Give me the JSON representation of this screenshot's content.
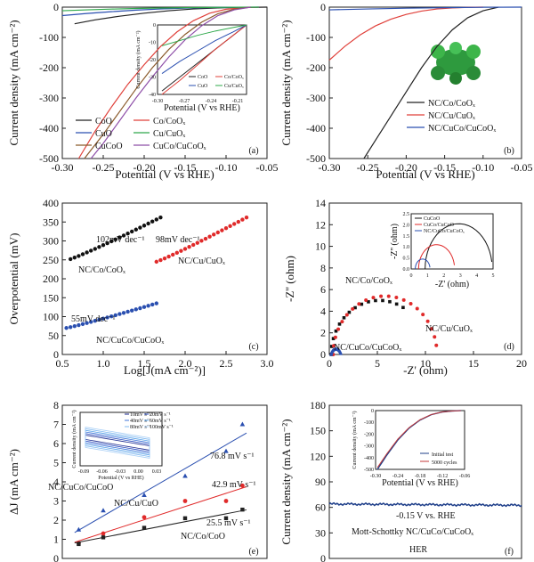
{
  "chart_data": [
    {
      "panel": "(a)",
      "type": "line",
      "xlabel": "Potential (V vs RHE)",
      "ylabel": "Current density (mA cm⁻²)",
      "xlim": [
        -0.3,
        -0.05
      ],
      "ylim": [
        -500,
        0
      ],
      "xticks": [
        "-0.30",
        "-0.25",
        "-0.20",
        "-0.15",
        "-0.10",
        "-0.05"
      ],
      "yticks": [
        "0",
        "-100",
        "-200",
        "-300",
        "-400",
        "-500"
      ],
      "series": [
        {
          "name": "CoO",
          "color": "#222222",
          "x": [
            -0.285,
            -0.26,
            -0.23,
            -0.2,
            -0.17,
            -0.14,
            -0.11,
            -0.08,
            -0.05
          ],
          "y": [
            -55,
            -42,
            -30,
            -20,
            -12,
            -6,
            -2.5,
            -1,
            0
          ]
        },
        {
          "name": "Co/CoOₓ",
          "color": "#e0403a",
          "x": [
            -0.28,
            -0.26,
            -0.24,
            -0.22,
            -0.2,
            -0.18,
            -0.16,
            -0.14,
            -0.12,
            -0.1,
            -0.08,
            -0.06
          ],
          "y": [
            -500,
            -410,
            -330,
            -255,
            -190,
            -130,
            -82,
            -45,
            -20,
            -7,
            -2,
            0
          ]
        },
        {
          "name": "CuO",
          "color": "#2a4fb0",
          "x": [
            -0.3,
            -0.27,
            -0.24,
            -0.21,
            -0.18,
            -0.15,
            -0.12,
            -0.09,
            -0.06
          ],
          "y": [
            -28,
            -21,
            -15,
            -10,
            -6,
            -3.5,
            -1.5,
            -0.5,
            0
          ]
        },
        {
          "name": "Cu/CuOₓ",
          "color": "#2ea84a",
          "x": [
            -0.3,
            -0.27,
            -0.24,
            -0.21,
            -0.18,
            -0.15,
            -0.12,
            -0.09,
            -0.06
          ],
          "y": [
            -12,
            -9,
            -6.5,
            -4.5,
            -3,
            -1.8,
            -1,
            -0.4,
            0
          ]
        },
        {
          "name": "CuCoO",
          "color": "#8a5a2b",
          "x": [
            -0.273,
            -0.25,
            -0.23,
            -0.21,
            -0.19,
            -0.17,
            -0.15,
            -0.13,
            -0.11,
            -0.09,
            -0.07
          ],
          "y": [
            -500,
            -420,
            -345,
            -270,
            -200,
            -140,
            -90,
            -50,
            -22,
            -7,
            0
          ]
        },
        {
          "name": "CuCo/CuCoOₓ",
          "color": "#8e4fa8",
          "x": [
            -0.265,
            -0.25,
            -0.23,
            -0.21,
            -0.19,
            -0.17,
            -0.15,
            -0.13,
            -0.11,
            -0.09,
            -0.07
          ],
          "y": [
            -500,
            -450,
            -375,
            -300,
            -230,
            -165,
            -108,
            -62,
            -28,
            -9,
            0
          ]
        }
      ],
      "legend": [
        "CoO",
        "Co/CoOₓ",
        "CuO",
        "Cu/CuOₓ",
        "CuCoO",
        "CuCo/CuCoOₓ"
      ],
      "inset": {
        "xlabel": "Potential (V vs RHE)",
        "ylabel": "Current density (mA cm⁻²)",
        "xlim": [
          -0.3,
          -0.2
        ],
        "ylim": [
          -40,
          0
        ],
        "xticks": [
          "-0.30",
          "-0.27",
          "-0.24",
          "-0.21"
        ],
        "yticks": [
          "0",
          "-10",
          "-20",
          "-30",
          "-40"
        ],
        "legend": [
          "CoO",
          "Co/CoOₓ",
          "CuO",
          "Cu/CuOₓ"
        ]
      }
    },
    {
      "panel": "(b)",
      "type": "line",
      "xlabel": "Potential (V vs RHE)",
      "ylabel": "Current density (mA cm⁻²)",
      "xlim": [
        -0.3,
        -0.05
      ],
      "ylim": [
        -500,
        0
      ],
      "xticks": [
        "-0.30",
        "-0.25",
        "-0.20",
        "-0.15",
        "-0.10",
        "-0.05"
      ],
      "yticks": [
        "0",
        "-100",
        "-200",
        "-300",
        "-400",
        "-500"
      ],
      "series": [
        {
          "name": "NC/Co/CoOₓ",
          "color": "#222222",
          "x": [
            -0.255,
            -0.24,
            -0.22,
            -0.2,
            -0.18,
            -0.16,
            -0.14,
            -0.12,
            -0.1,
            -0.08
          ],
          "y": [
            -500,
            -440,
            -360,
            -280,
            -200,
            -130,
            -75,
            -35,
            -12,
            0
          ]
        },
        {
          "name": "NC/Cu/CuOₓ",
          "color": "#e0403a",
          "x": [
            -0.3,
            -0.28,
            -0.26,
            -0.24,
            -0.22,
            -0.2,
            -0.18,
            -0.16,
            -0.14,
            -0.12,
            -0.1
          ],
          "y": [
            -175,
            -130,
            -92,
            -62,
            -40,
            -24,
            -13,
            -6,
            -2.5,
            -0.8,
            0
          ]
        },
        {
          "name": "NC/CuCo/CuCoOₓ",
          "color": "#2a4fb0",
          "x": [
            -0.3,
            -0.25,
            -0.2,
            -0.15,
            -0.1,
            -0.05
          ],
          "y": [
            -9,
            -6,
            -3.5,
            -1.8,
            -0.6,
            0
          ]
        }
      ],
      "legend": [
        "NC/Co/CoOₓ",
        "NC/Cu/CuOₓ",
        "NC/CuCo/CuCoOₓ"
      ]
    },
    {
      "panel": "(c)",
      "type": "scatter",
      "xlabel": "Log[J(mA cm⁻²)]",
      "ylabel": "Overpotential (mV)",
      "xlim": [
        0.5,
        3.0
      ],
      "ylim": [
        0,
        400
      ],
      "xticks": [
        "0.5",
        "1.0",
        "1.5",
        "2.0",
        "2.5",
        "3.0"
      ],
      "yticks": [
        "0",
        "50",
        "100",
        "150",
        "200",
        "250",
        "300",
        "350",
        "400"
      ],
      "series": [
        {
          "name": "NC/Co/CoOₓ",
          "color": "#111111",
          "x": [
            0.6,
            1.7
          ],
          "y": [
            252,
            362
          ],
          "slope_label": "102mV dec⁻¹"
        },
        {
          "name": "NC/Cu/CuOₓ",
          "color": "#e02a2a",
          "x": [
            1.65,
            2.75
          ],
          "y": [
            245,
            362
          ],
          "slope_label": "98mV dec⁻¹"
        },
        {
          "name": "NC/CuCo/CuCoOₓ",
          "color": "#2a4fb0",
          "x": [
            0.55,
            1.65
          ],
          "y": [
            70,
            135
          ],
          "slope_label": "55mV dec⁻¹"
        }
      ]
    },
    {
      "panel": "(d)",
      "type": "scatter",
      "xlabel": "-Z' (ohm)",
      "ylabel": "-Z'' (ohm)",
      "xlim": [
        0,
        20
      ],
      "ylim": [
        0,
        14
      ],
      "xticks": [
        "0",
        "5",
        "10",
        "15",
        "20"
      ],
      "yticks": [
        "0",
        "2",
        "4",
        "6",
        "8",
        "10",
        "12",
        "14"
      ],
      "series": [
        {
          "name": "NC/Co/CoOₓ",
          "color": "#111111",
          "center": 5.2,
          "radius": 5.0,
          "x_end": 8.0
        },
        {
          "name": "NC/Cu/CuOₓ",
          "color": "#e02a2a",
          "center": 5.8,
          "radius": 5.4,
          "x_end": 11.2
        },
        {
          "name": "NC/CuCo/CuCoOₓ",
          "color": "#2a4fb0",
          "center": 0.7,
          "radius": 0.5,
          "x_end": 1.2
        }
      ],
      "inset": {
        "xlabel": "-Z' (ohm)",
        "ylabel": "-Z'' (ohm)",
        "xlim": [
          0,
          5
        ],
        "ylim": [
          0,
          2.5
        ],
        "xticks": [
          "0",
          "1",
          "2",
          "3",
          "4",
          "5"
        ],
        "yticks": [
          "0.0",
          "0.5",
          "1.0",
          "1.5",
          "2.0",
          "2.5"
        ],
        "series": [
          {
            "name": "CuCoO",
            "color": "#111111",
            "center": 2.9,
            "radius": 2.05
          },
          {
            "name": "CuCo/CuCoO",
            "color": "#e02a2a",
            "center": 1.55,
            "radius": 1.1
          },
          {
            "name": "NC/CuCo/CuCoOₓ",
            "color": "#2a4fb0",
            "center": 0.7,
            "radius": 0.45
          }
        ]
      }
    },
    {
      "panel": "(e)",
      "type": "scatter",
      "xlabel": "",
      "ylabel": "ΔJ (mA cm⁻²)",
      "xlim": [
        0,
        250
      ],
      "ylim": [
        0,
        8
      ],
      "yticks": [
        "0",
        "1",
        "2",
        "3",
        "4",
        "5",
        "6",
        "7",
        "8"
      ],
      "series": [
        {
          "name": "NC/CuCo/CuCoO",
          "color": "#2a4fb0",
          "marker": "triangle",
          "x": [
            20,
            50,
            100,
            150,
            200,
            220
          ],
          "y": [
            1.5,
            2.5,
            3.3,
            4.3,
            5.6,
            7.0
          ],
          "slope_label": "76.8 mV s⁻¹"
        },
        {
          "name": "NC/Cu/CuO",
          "color": "#e02a2a",
          "marker": "circle",
          "x": [
            20,
            50,
            100,
            150,
            200,
            220
          ],
          "y": [
            0.8,
            1.3,
            2.15,
            3.0,
            3.0,
            3.8
          ],
          "slope_label": "42.9 mV s⁻¹"
        },
        {
          "name": "NC/Co/CoO",
          "color": "#222222",
          "marker": "square",
          "x": [
            20,
            50,
            100,
            150,
            200,
            220
          ],
          "y": [
            0.75,
            1.1,
            1.6,
            2.1,
            2.1,
            2.55
          ],
          "slope_label": "25.5 mV s⁻¹"
        }
      ],
      "inset": {
        "xlabel": "Potential (V vs RHE)",
        "ylabel": "Current density (mA cm⁻²)",
        "xticks": [
          "-0.09",
          "-0.06",
          "-0.03",
          "0.00",
          "0.03"
        ],
        "legend": [
          "10mV s⁻¹",
          "20mV s⁻¹",
          "40mV s⁻¹",
          "60mV s⁻¹",
          "80mV s⁻¹",
          "100mV s⁻¹"
        ]
      }
    },
    {
      "panel": "(f)",
      "type": "line",
      "xlabel": "",
      "ylabel": "Current density (mA cm⁻²)",
      "ylim": [
        0,
        180
      ],
      "yticks": [
        "0",
        "30",
        "60",
        "90",
        "120",
        "150",
        "180"
      ],
      "series": [
        {
          "name": "-0.15 V vs. RHE",
          "color": "#1f3f8a",
          "level": 64
        }
      ],
      "annotations": [
        "-0.15 V vs. RHE",
        "Mott-Schottky NC/CuCo/CuCoOₓ",
        "HER"
      ],
      "inset": {
        "xlabel": "Potential (V vs RHE)",
        "ylabel": "Current density (mA cm⁻²)",
        "xlim": [
          -0.3,
          -0.06
        ],
        "ylim": [
          -500,
          0
        ],
        "xticks": [
          "-0.30",
          "-0.24",
          "-0.18",
          "-0.12",
          "-0.06"
        ],
        "yticks": [
          "0",
          "-100",
          "-200",
          "-300",
          "-400",
          "-500"
        ],
        "legend": [
          "Initial test",
          "5000 cycles"
        ]
      }
    }
  ]
}
